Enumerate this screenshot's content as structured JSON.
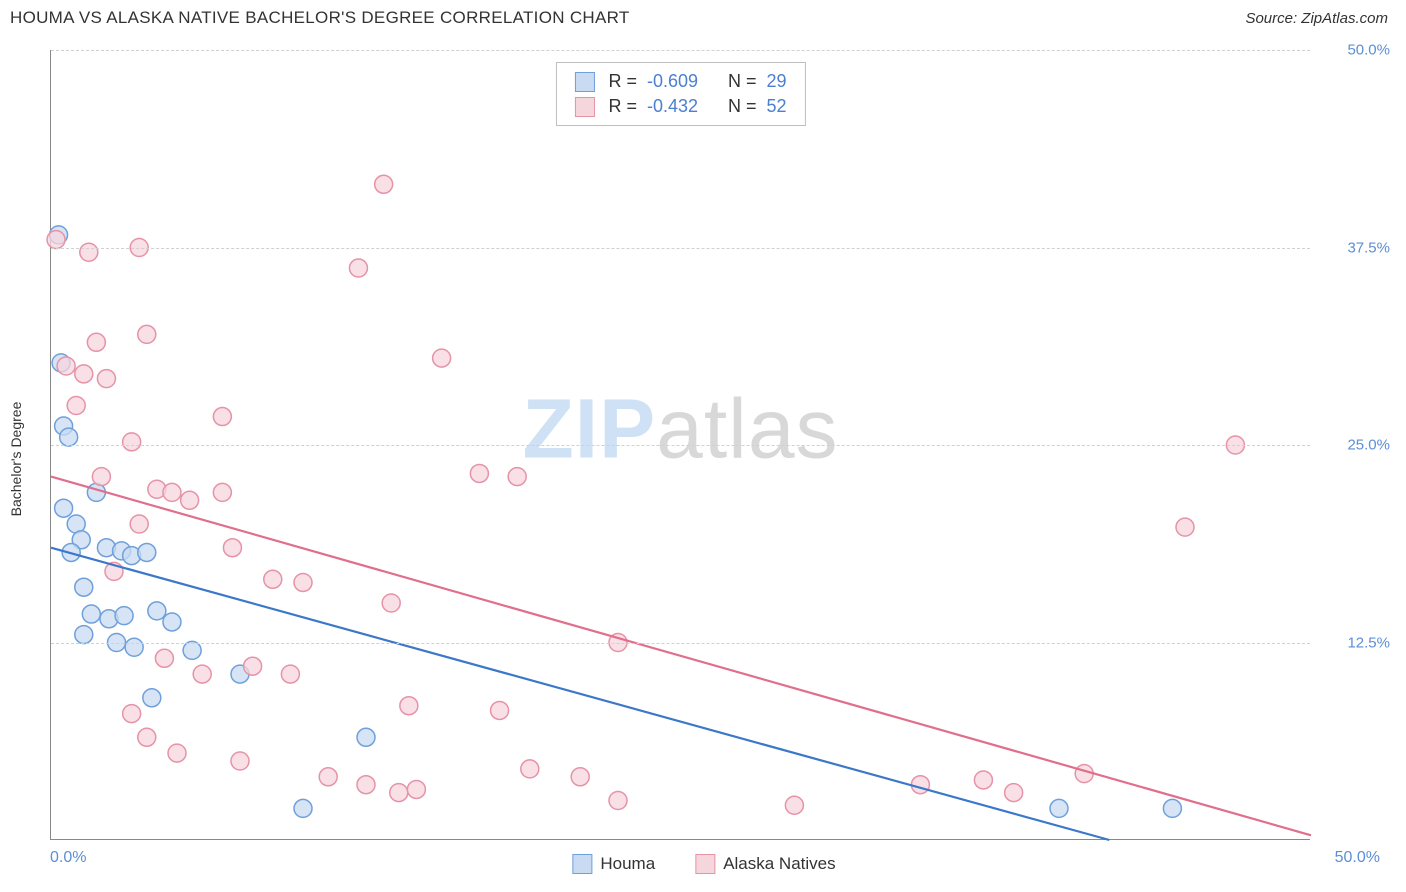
{
  "header": {
    "title": "HOUMA VS ALASKA NATIVE BACHELOR'S DEGREE CORRELATION CHART",
    "source_label": "Source: ZipAtlas.com"
  },
  "watermark": {
    "zip": "ZIP",
    "atlas": "atlas"
  },
  "chart": {
    "type": "scatter",
    "y_axis_title": "Bachelor's Degree",
    "x_range": [
      0,
      50
    ],
    "y_range": [
      0,
      50
    ],
    "x_ticks": [
      {
        "value": 0,
        "label": "0.0%"
      },
      {
        "value": 50,
        "label": "50.0%"
      }
    ],
    "y_ticks": [
      {
        "value": 12.5,
        "label": "12.5%"
      },
      {
        "value": 25.0,
        "label": "25.0%"
      },
      {
        "value": 37.5,
        "label": "37.5%"
      },
      {
        "value": 50.0,
        "label": "50.0%"
      }
    ],
    "background_color": "#ffffff",
    "grid_color": "#d0d0d0",
    "axis_color": "#888888",
    "tick_label_color": "#5b8fd6",
    "marker_radius": 9,
    "marker_stroke_width": 1.5,
    "trend_line_width": 2.2,
    "series": [
      {
        "id": "houma",
        "legend_label": "Houma",
        "fill_color": "#c8dbf2",
        "stroke_color": "#6fa0db",
        "line_color": "#3b78c9",
        "stats": {
          "R": "-0.609",
          "N": "29"
        },
        "trend": {
          "x1": 0,
          "y1": 18.5,
          "x2": 42,
          "y2": 0
        },
        "points": [
          {
            "x": 0.3,
            "y": 38.3
          },
          {
            "x": 0.4,
            "y": 30.2
          },
          {
            "x": 0.5,
            "y": 26.2
          },
          {
            "x": 0.7,
            "y": 25.5
          },
          {
            "x": 0.5,
            "y": 21.0
          },
          {
            "x": 1.0,
            "y": 20.0
          },
          {
            "x": 1.8,
            "y": 22.0
          },
          {
            "x": 1.2,
            "y": 19.0
          },
          {
            "x": 0.8,
            "y": 18.2
          },
          {
            "x": 1.3,
            "y": 16.0
          },
          {
            "x": 2.2,
            "y": 18.5
          },
          {
            "x": 2.8,
            "y": 18.3
          },
          {
            "x": 3.2,
            "y": 18.0
          },
          {
            "x": 3.8,
            "y": 18.2
          },
          {
            "x": 1.6,
            "y": 14.3
          },
          {
            "x": 2.3,
            "y": 14.0
          },
          {
            "x": 2.9,
            "y": 14.2
          },
          {
            "x": 4.2,
            "y": 14.5
          },
          {
            "x": 1.3,
            "y": 13.0
          },
          {
            "x": 2.6,
            "y": 12.5
          },
          {
            "x": 3.3,
            "y": 12.2
          },
          {
            "x": 4.8,
            "y": 13.8
          },
          {
            "x": 5.6,
            "y": 12.0
          },
          {
            "x": 4.0,
            "y": 9.0
          },
          {
            "x": 7.5,
            "y": 10.5
          },
          {
            "x": 10.0,
            "y": 2.0
          },
          {
            "x": 12.5,
            "y": 6.5
          },
          {
            "x": 40.0,
            "y": 2.0
          },
          {
            "x": 44.5,
            "y": 2.0
          }
        ]
      },
      {
        "id": "alaska",
        "legend_label": "Alaska Natives",
        "fill_color": "#f6d6dd",
        "stroke_color": "#e693a6",
        "line_color": "#e06f8b",
        "stats": {
          "R": "-0.432",
          "N": "52"
        },
        "trend": {
          "x1": 0,
          "y1": 23.0,
          "x2": 50,
          "y2": 0.3
        },
        "points": [
          {
            "x": 0.2,
            "y": 38.0
          },
          {
            "x": 1.5,
            "y": 37.2
          },
          {
            "x": 3.5,
            "y": 37.5
          },
          {
            "x": 13.2,
            "y": 41.5
          },
          {
            "x": 12.2,
            "y": 36.2
          },
          {
            "x": 0.6,
            "y": 30.0
          },
          {
            "x": 1.8,
            "y": 31.5
          },
          {
            "x": 3.8,
            "y": 32.0
          },
          {
            "x": 1.3,
            "y": 29.5
          },
          {
            "x": 2.2,
            "y": 29.2
          },
          {
            "x": 1.0,
            "y": 27.5
          },
          {
            "x": 15.5,
            "y": 30.5
          },
          {
            "x": 6.8,
            "y": 26.8
          },
          {
            "x": 3.2,
            "y": 25.2
          },
          {
            "x": 2.0,
            "y": 23.0
          },
          {
            "x": 4.2,
            "y": 22.2
          },
          {
            "x": 4.8,
            "y": 22.0
          },
          {
            "x": 5.5,
            "y": 21.5
          },
          {
            "x": 6.8,
            "y": 22.0
          },
          {
            "x": 3.5,
            "y": 20.0
          },
          {
            "x": 17.0,
            "y": 23.2
          },
          {
            "x": 18.5,
            "y": 23.0
          },
          {
            "x": 7.2,
            "y": 18.5
          },
          {
            "x": 2.5,
            "y": 17.0
          },
          {
            "x": 8.8,
            "y": 16.5
          },
          {
            "x": 10.0,
            "y": 16.3
          },
          {
            "x": 13.5,
            "y": 15.0
          },
          {
            "x": 22.5,
            "y": 12.5
          },
          {
            "x": 47.0,
            "y": 25.0
          },
          {
            "x": 45.0,
            "y": 19.8
          },
          {
            "x": 4.5,
            "y": 11.5
          },
          {
            "x": 6.0,
            "y": 10.5
          },
          {
            "x": 8.0,
            "y": 11.0
          },
          {
            "x": 9.5,
            "y": 10.5
          },
          {
            "x": 3.2,
            "y": 8.0
          },
          {
            "x": 14.2,
            "y": 8.5
          },
          {
            "x": 17.8,
            "y": 8.2
          },
          {
            "x": 3.8,
            "y": 6.5
          },
          {
            "x": 5.0,
            "y": 5.5
          },
          {
            "x": 7.5,
            "y": 5.0
          },
          {
            "x": 11.0,
            "y": 4.0
          },
          {
            "x": 12.5,
            "y": 3.5
          },
          {
            "x": 13.8,
            "y": 3.0
          },
          {
            "x": 14.5,
            "y": 3.2
          },
          {
            "x": 19.0,
            "y": 4.5
          },
          {
            "x": 21.0,
            "y": 4.0
          },
          {
            "x": 22.5,
            "y": 2.5
          },
          {
            "x": 29.5,
            "y": 2.2
          },
          {
            "x": 34.5,
            "y": 3.5
          },
          {
            "x": 37.0,
            "y": 3.8
          },
          {
            "x": 38.2,
            "y": 3.0
          },
          {
            "x": 41.0,
            "y": 4.2
          }
        ]
      }
    ],
    "stats_box": {
      "R_label": "R =",
      "N_label": "N ="
    },
    "bottom_legend_title": ""
  }
}
